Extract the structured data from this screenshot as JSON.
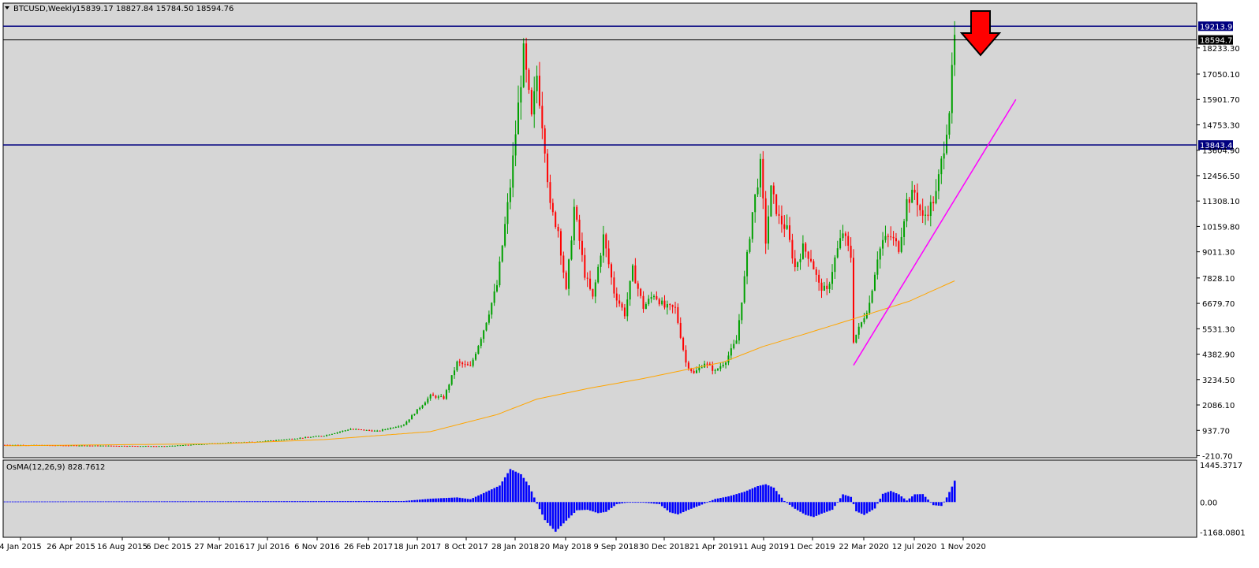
{
  "header": {
    "symbol": "BTCUSD,Weekly",
    "ohlc": "15839.17 18827.84 15784.50 18594.76"
  },
  "osma": {
    "label": "OsMA(12,26,9) 828.7612"
  },
  "colors": {
    "background": "#d6d6d6",
    "bull": "#00a000",
    "bear": "#ff0000",
    "ma": "#ffa500",
    "level": "#000080",
    "trendline": "#ff00ff",
    "histogram": "#0000ff",
    "arrow": "#ff0000"
  },
  "chart_data": [
    {
      "type": "candlestick",
      "title": "BTCUSD,Weekly",
      "y_ticks": [
        "18233.30",
        "17050.10",
        "15901.70",
        "14753.30",
        "13604.90",
        "12456.50",
        "11308.10",
        "10159.80",
        "9011.30",
        "7828.10",
        "6679.70",
        "5531.30",
        "4382.90",
        "3234.50",
        "2086.10",
        "937.70",
        "-210.70"
      ],
      "ylim": [
        -210.7,
        19500
      ],
      "x_ticks": [
        "4 Jan 2015",
        "26 Apr 2015",
        "16 Aug 2015",
        "6 Dec 2015",
        "27 Mar 2016",
        "17 Jul 2016",
        "6 Nov 2016",
        "26 Feb 2017",
        "18 Jun 2017",
        "8 Oct 2017",
        "28 Jan 2018",
        "20 May 2018",
        "9 Sep 2018",
        "30 Dec 2018",
        "21 Apr 2019",
        "11 Aug 2019",
        "1 Dec 2019",
        "22 Mar 2020",
        "12 Jul 2020",
        "1 Nov 2020"
      ],
      "price_path": [
        [
          0,
          280
        ],
        [
          30,
          250
        ],
        [
          60,
          220
        ],
        [
          80,
          360
        ],
        [
          95,
          420
        ],
        [
          110,
          580
        ],
        [
          120,
          700
        ],
        [
          130,
          1000
        ],
        [
          140,
          900
        ],
        [
          150,
          1200
        ],
        [
          160,
          2500
        ],
        [
          165,
          2400
        ],
        [
          170,
          4000
        ],
        [
          175,
          3800
        ],
        [
          180,
          5500
        ],
        [
          185,
          7500
        ],
        [
          190,
          12000
        ],
        [
          195,
          18000
        ],
        [
          198,
          15000
        ],
        [
          200,
          17000
        ],
        [
          203,
          13800
        ],
        [
          205,
          11000
        ],
        [
          208,
          10000
        ],
        [
          211,
          7200
        ],
        [
          214,
          11000
        ],
        [
          218,
          8000
        ],
        [
          221,
          6900
        ],
        [
          225,
          9700
        ],
        [
          229,
          7200
        ],
        [
          233,
          6200
        ],
        [
          236,
          8200
        ],
        [
          240,
          6500
        ],
        [
          244,
          7100
        ],
        [
          248,
          6500
        ],
        [
          252,
          6450
        ],
        [
          256,
          4000
        ],
        [
          259,
          3500
        ],
        [
          263,
          4000
        ],
        [
          267,
          3600
        ],
        [
          271,
          4100
        ],
        [
          275,
          5000
        ],
        [
          278,
          7800
        ],
        [
          281,
          10800
        ],
        [
          284,
          12900
        ],
        [
          286,
          9500
        ],
        [
          288,
          11800
        ],
        [
          291,
          10500
        ],
        [
          294,
          10000
        ],
        [
          297,
          8300
        ],
        [
          300,
          9200
        ],
        [
          303,
          8700
        ],
        [
          306,
          7500
        ],
        [
          309,
          7200
        ],
        [
          312,
          8700
        ],
        [
          315,
          9900
        ],
        [
          318,
          8800
        ],
        [
          319,
          5000
        ],
        [
          322,
          5800
        ],
        [
          325,
          6700
        ],
        [
          328,
          8800
        ],
        [
          330,
          9500
        ],
        [
          333,
          9700
        ],
        [
          336,
          9200
        ],
        [
          339,
          11300
        ],
        [
          342,
          11700
        ],
        [
          345,
          10500
        ],
        [
          348,
          11100
        ],
        [
          350,
          11600
        ],
        [
          353,
          13800
        ],
        [
          355,
          15500
        ],
        [
          357,
          18594.76
        ]
      ],
      "ma_path": [
        [
          0,
          240
        ],
        [
          80,
          330
        ],
        [
          120,
          520
        ],
        [
          160,
          880
        ],
        [
          185,
          1650
        ],
        [
          200,
          2350
        ],
        [
          220,
          2850
        ],
        [
          240,
          3280
        ],
        [
          256,
          3680
        ],
        [
          270,
          4020
        ],
        [
          285,
          4730
        ],
        [
          300,
          5270
        ],
        [
          318,
          5940
        ],
        [
          340,
          6780
        ],
        [
          357,
          7700
        ]
      ],
      "levels": [
        {
          "value": 19213.97,
          "label": "19213.97"
        },
        {
          "value": 18594.76,
          "label": "18594.76"
        },
        {
          "value": 13843.48,
          "label": "13843.48"
        }
      ],
      "trendline": {
        "from": [
          319,
          3880
        ],
        "to": [
          380,
          15900
        ]
      },
      "bars_total": 380,
      "annotation": "down-arrow"
    },
    {
      "type": "bar",
      "title": "OsMA(12,26,9) 828.7612",
      "y_ticks": [
        "1445.3717",
        "0.00",
        "-1168.0801"
      ],
      "ylim": [
        -1168.0801,
        1445.3717
      ],
      "path": [
        [
          0,
          20
        ],
        [
          150,
          40
        ],
        [
          160,
          130
        ],
        [
          170,
          180
        ],
        [
          175,
          110
        ],
        [
          180,
          350
        ],
        [
          186,
          640
        ],
        [
          190,
          1280
        ],
        [
          194,
          1080
        ],
        [
          197,
          650
        ],
        [
          200,
          -60
        ],
        [
          203,
          -700
        ],
        [
          207,
          -1150
        ],
        [
          211,
          -720
        ],
        [
          215,
          -320
        ],
        [
          219,
          -300
        ],
        [
          223,
          -430
        ],
        [
          226,
          -380
        ],
        [
          230,
          -80
        ],
        [
          234,
          -20
        ],
        [
          240,
          -20
        ],
        [
          246,
          -80
        ],
        [
          250,
          -400
        ],
        [
          253,
          -480
        ],
        [
          257,
          -300
        ],
        [
          261,
          -140
        ],
        [
          267,
          120
        ],
        [
          272,
          220
        ],
        [
          278,
          400
        ],
        [
          283,
          620
        ],
        [
          286,
          690
        ],
        [
          289,
          560
        ],
        [
          293,
          40
        ],
        [
          297,
          -260
        ],
        [
          301,
          -500
        ],
        [
          304,
          -580
        ],
        [
          307,
          -450
        ],
        [
          311,
          -300
        ],
        [
          315,
          300
        ],
        [
          318,
          200
        ],
        [
          320,
          -360
        ],
        [
          323,
          -500
        ],
        [
          327,
          -250
        ],
        [
          330,
          320
        ],
        [
          333,
          430
        ],
        [
          336,
          300
        ],
        [
          339,
          60
        ],
        [
          342,
          300
        ],
        [
          345,
          310
        ],
        [
          349,
          -120
        ],
        [
          352,
          -150
        ],
        [
          354,
          180
        ],
        [
          356,
          600
        ],
        [
          357,
          828.76
        ]
      ]
    }
  ]
}
